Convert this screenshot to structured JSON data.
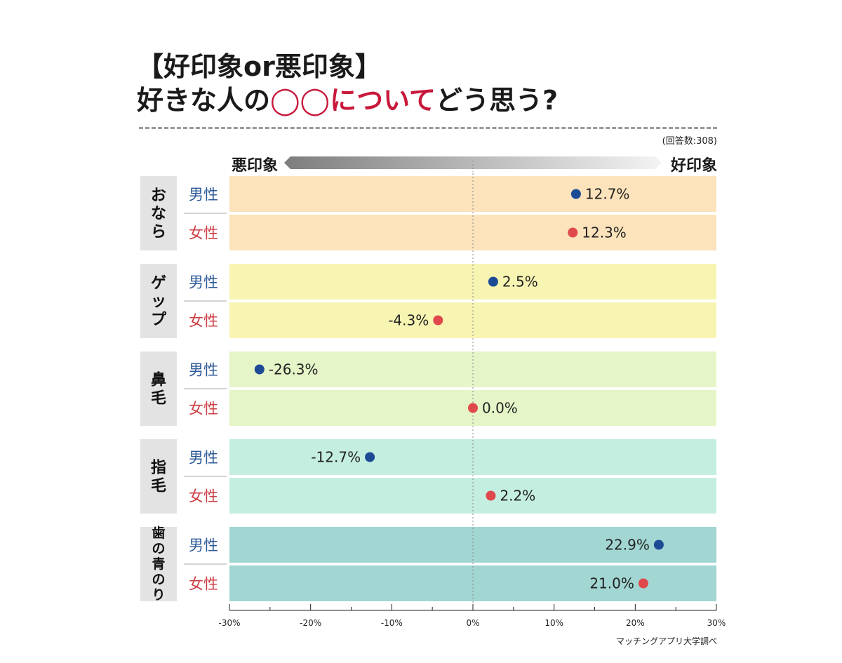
{
  "title": {
    "line1": "【好印象or悪印象】",
    "line2_a": "好きな人の",
    "line2_b": "◯◯について",
    "line2_c": "どう思う?"
  },
  "respondents": "(回答数:308)",
  "scale": {
    "left": "悪印象",
    "right": "好印象"
  },
  "source": "マッチングアプリ大学調べ",
  "colors": {
    "male": "#1c4a94",
    "female": "#e0494c",
    "male_text": "#2d5a97",
    "female_text": "#cc3d43"
  },
  "chart_data": {
    "type": "scatter",
    "xlim": [
      -30,
      30
    ],
    "x_ticks": [
      "-30%",
      "-20%",
      "-10%",
      "0%",
      "10%",
      "20%",
      "30%"
    ],
    "groups": [
      {
        "label": "おなら",
        "bg": "#fce3bb",
        "rows": [
          {
            "gender": "男性",
            "value": 12.7,
            "text": "12.7%"
          },
          {
            "gender": "女性",
            "value": 12.3,
            "text": "12.3%"
          }
        ]
      },
      {
        "label": "ゲップ",
        "bg": "#f8f5b3",
        "rows": [
          {
            "gender": "男性",
            "value": 2.5,
            "text": "2.5%"
          },
          {
            "gender": "女性",
            "value": -4.3,
            "text": "-4.3%"
          }
        ]
      },
      {
        "label": "鼻毛",
        "bg": "#e6f5c8",
        "rows": [
          {
            "gender": "男性",
            "value": -26.3,
            "text": "-26.3%"
          },
          {
            "gender": "女性",
            "value": 0.0,
            "text": "0.0%"
          }
        ]
      },
      {
        "label": "指毛",
        "bg": "#c4eedf",
        "rows": [
          {
            "gender": "男性",
            "value": -12.7,
            "text": "-12.7%"
          },
          {
            "gender": "女性",
            "value": 2.2,
            "text": "2.2%"
          }
        ]
      },
      {
        "label": "歯の青のり",
        "bg": "#a1d6d2",
        "rows": [
          {
            "gender": "男性",
            "value": 22.9,
            "text": "22.9%"
          },
          {
            "gender": "女性",
            "value": 21.0,
            "text": "21.0%"
          }
        ]
      }
    ]
  }
}
